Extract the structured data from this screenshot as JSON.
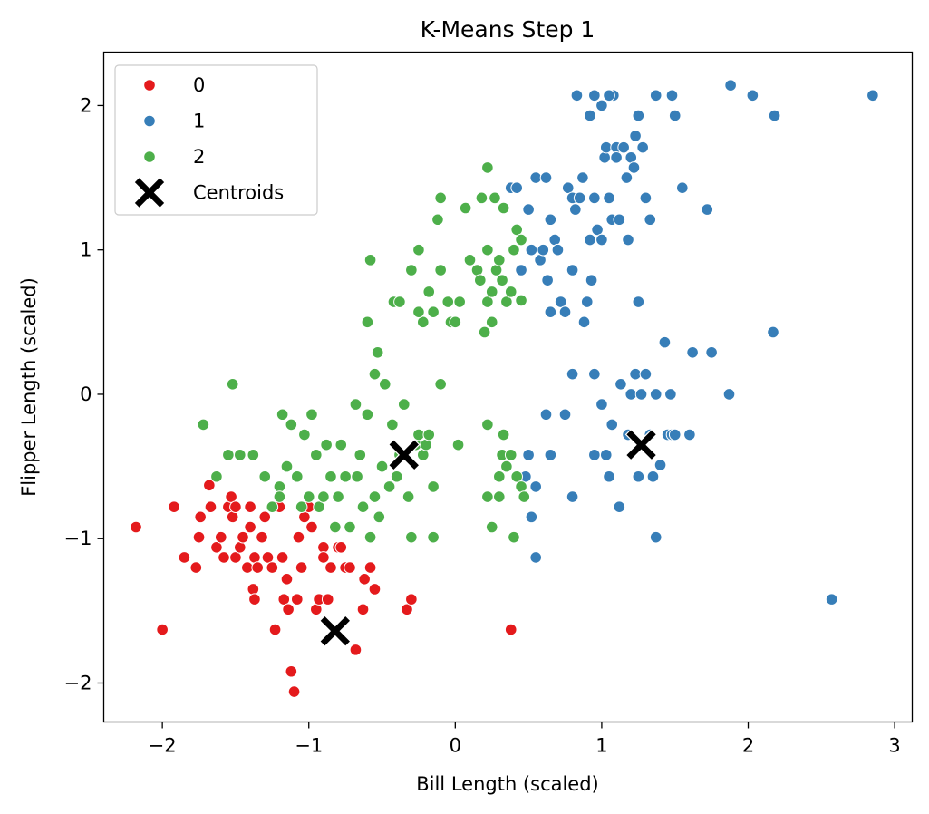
{
  "chart_data": {
    "type": "scatter",
    "title": "K-Means Step 1",
    "xlabel": "Bill Length (scaled)",
    "ylabel": "Flipper Length (scaled)",
    "xlim": [
      -2.4,
      3.12
    ],
    "ylim": [
      -2.27,
      2.37
    ],
    "xticks": [
      -2,
      -1,
      0,
      1,
      2,
      3
    ],
    "xtick_labels": [
      "−2",
      "−1",
      "0",
      "1",
      "2",
      "3"
    ],
    "yticks": [
      -2,
      -1,
      0,
      1,
      2
    ],
    "ytick_labels": [
      "−2",
      "−1",
      "0",
      "1",
      "2"
    ],
    "grid": false,
    "legend_position": "top-left",
    "series": [
      {
        "name": "0",
        "color": "#e41a1c",
        "points": [
          [
            -2.18,
            -0.92
          ],
          [
            -2.0,
            -1.63
          ],
          [
            -1.92,
            -0.78
          ],
          [
            -1.85,
            -1.13
          ],
          [
            -1.77,
            -1.2
          ],
          [
            -1.75,
            -0.99
          ],
          [
            -1.74,
            -0.85
          ],
          [
            -1.68,
            -0.63
          ],
          [
            -1.67,
            -0.78
          ],
          [
            -1.63,
            -1.06
          ],
          [
            -1.6,
            -0.99
          ],
          [
            -1.58,
            -1.13
          ],
          [
            -1.55,
            -0.78
          ],
          [
            -1.53,
            -0.71
          ],
          [
            -1.52,
            -0.85
          ],
          [
            -1.5,
            -1.13
          ],
          [
            -1.5,
            -0.78
          ],
          [
            -1.47,
            -1.06
          ],
          [
            -1.45,
            -0.99
          ],
          [
            -1.42,
            -1.2
          ],
          [
            -1.4,
            -0.92
          ],
          [
            -1.4,
            -0.78
          ],
          [
            -1.38,
            -1.35
          ],
          [
            -1.37,
            -1.42
          ],
          [
            -1.37,
            -1.13
          ],
          [
            -1.35,
            -1.2
          ],
          [
            -1.32,
            -0.99
          ],
          [
            -1.3,
            -0.85
          ],
          [
            -1.28,
            -1.13
          ],
          [
            -1.25,
            -1.2
          ],
          [
            -1.23,
            -1.63
          ],
          [
            -1.2,
            -0.78
          ],
          [
            -1.18,
            -1.13
          ],
          [
            -1.17,
            -1.42
          ],
          [
            -1.15,
            -1.28
          ],
          [
            -1.14,
            -1.49
          ],
          [
            -1.12,
            -1.92
          ],
          [
            -1.1,
            -2.06
          ],
          [
            -1.08,
            -1.42
          ],
          [
            -1.07,
            -0.99
          ],
          [
            -1.05,
            -1.2
          ],
          [
            -1.03,
            -0.85
          ],
          [
            -1.0,
            -0.78
          ],
          [
            -0.98,
            -0.92
          ],
          [
            -0.95,
            -1.49
          ],
          [
            -0.93,
            -1.42
          ],
          [
            -0.9,
            -1.06
          ],
          [
            -0.9,
            -1.13
          ],
          [
            -0.87,
            -1.42
          ],
          [
            -0.85,
            -1.2
          ],
          [
            -0.8,
            -1.06
          ],
          [
            -0.78,
            -1.06
          ],
          [
            -0.75,
            -1.2
          ],
          [
            -0.72,
            -1.2
          ],
          [
            -0.68,
            -1.77
          ],
          [
            -0.63,
            -1.49
          ],
          [
            -0.62,
            -1.28
          ],
          [
            -0.58,
            -1.2
          ],
          [
            -0.55,
            -1.35
          ],
          [
            -0.33,
            -1.49
          ],
          [
            -0.3,
            -1.42
          ],
          [
            0.38,
            -1.63
          ]
        ]
      },
      {
        "name": "1",
        "color": "#377eb8",
        "points": [
          [
            0.38,
            1.43
          ],
          [
            0.42,
            1.43
          ],
          [
            0.45,
            0.86
          ],
          [
            0.45,
            0.65
          ],
          [
            0.5,
            1.28
          ],
          [
            0.52,
            1.0
          ],
          [
            0.55,
            1.5
          ],
          [
            0.58,
            0.93
          ],
          [
            0.6,
            1.0
          ],
          [
            0.62,
            1.5
          ],
          [
            0.63,
            0.79
          ],
          [
            0.65,
            1.21
          ],
          [
            0.65,
            0.57
          ],
          [
            0.68,
            1.07
          ],
          [
            0.7,
            1.0
          ],
          [
            0.72,
            0.64
          ],
          [
            0.75,
            0.57
          ],
          [
            0.77,
            1.43
          ],
          [
            0.8,
            1.36
          ],
          [
            0.8,
            0.86
          ],
          [
            0.82,
            1.28
          ],
          [
            0.83,
            2.07
          ],
          [
            0.85,
            1.36
          ],
          [
            0.87,
            1.5
          ],
          [
            0.88,
            0.5
          ],
          [
            0.9,
            0.64
          ],
          [
            0.92,
            1.07
          ],
          [
            0.93,
            0.79
          ],
          [
            0.95,
            1.36
          ],
          [
            0.97,
            1.14
          ],
          [
            1.0,
            1.07
          ],
          [
            1.02,
            1.64
          ],
          [
            1.03,
            1.71
          ],
          [
            1.05,
            1.36
          ],
          [
            1.07,
            1.21
          ],
          [
            1.08,
            2.07
          ],
          [
            1.1,
            1.71
          ],
          [
            1.1,
            1.64
          ],
          [
            1.12,
            1.21
          ],
          [
            1.15,
            1.71
          ],
          [
            1.17,
            1.5
          ],
          [
            1.18,
            1.07
          ],
          [
            1.2,
            1.64
          ],
          [
            1.22,
            1.57
          ],
          [
            1.23,
            1.79
          ],
          [
            1.25,
            1.93
          ],
          [
            1.25,
            0.64
          ],
          [
            1.28,
            1.71
          ],
          [
            1.3,
            1.36
          ],
          [
            1.33,
            1.21
          ],
          [
            1.37,
            2.07
          ],
          [
            1.48,
            2.07
          ],
          [
            1.5,
            1.93
          ],
          [
            1.55,
            1.43
          ],
          [
            1.72,
            1.28
          ],
          [
            1.88,
            2.14
          ],
          [
            2.03,
            2.07
          ],
          [
            2.18,
            1.93
          ],
          [
            2.85,
            2.07
          ],
          [
            0.92,
            1.93
          ],
          [
            1.0,
            2.0
          ],
          [
            1.05,
            2.07
          ],
          [
            0.95,
            2.07
          ],
          [
            0.62,
            -0.14
          ],
          [
            0.75,
            -0.14
          ],
          [
            0.8,
            0.14
          ],
          [
            0.8,
            -0.71
          ],
          [
            0.95,
            0.14
          ],
          [
            0.95,
            -0.42
          ],
          [
            1.0,
            -0.07
          ],
          [
            1.03,
            -0.42
          ],
          [
            1.05,
            -0.57
          ],
          [
            1.07,
            -0.21
          ],
          [
            1.12,
            -0.78
          ],
          [
            1.13,
            0.07
          ],
          [
            1.18,
            -0.28
          ],
          [
            1.2,
            0.0
          ],
          [
            1.23,
            0.14
          ],
          [
            1.25,
            -0.57
          ],
          [
            1.27,
            0.0
          ],
          [
            1.3,
            0.14
          ],
          [
            1.33,
            -0.28
          ],
          [
            1.35,
            -0.57
          ],
          [
            1.37,
            0.0
          ],
          [
            1.4,
            -0.49
          ],
          [
            1.43,
            0.36
          ],
          [
            1.45,
            -0.28
          ],
          [
            1.47,
            0.0
          ],
          [
            1.48,
            -0.28
          ],
          [
            1.5,
            -0.28
          ],
          [
            1.6,
            -0.28
          ],
          [
            1.62,
            0.29
          ],
          [
            1.75,
            0.29
          ],
          [
            1.87,
            0.0
          ],
          [
            2.17,
            0.43
          ],
          [
            1.37,
            -0.99
          ],
          [
            0.48,
            -0.57
          ],
          [
            0.5,
            -0.42
          ],
          [
            0.52,
            -0.85
          ],
          [
            0.55,
            -0.64
          ],
          [
            0.55,
            -1.13
          ],
          [
            0.65,
            -0.42
          ],
          [
            2.57,
            -1.42
          ]
        ]
      },
      {
        "name": "2",
        "color": "#4daf4a",
        "points": [
          [
            -1.72,
            -0.21
          ],
          [
            -1.63,
            -0.57
          ],
          [
            -1.55,
            -0.42
          ],
          [
            -1.52,
            0.07
          ],
          [
            -1.47,
            -0.42
          ],
          [
            -1.38,
            -0.42
          ],
          [
            -1.3,
            -0.57
          ],
          [
            -1.25,
            -0.78
          ],
          [
            -1.2,
            -0.64
          ],
          [
            -1.2,
            -0.71
          ],
          [
            -1.18,
            -0.14
          ],
          [
            -1.15,
            -0.5
          ],
          [
            -1.12,
            -0.21
          ],
          [
            -1.08,
            -0.57
          ],
          [
            -1.05,
            -0.78
          ],
          [
            -1.03,
            -0.28
          ],
          [
            -1.0,
            -0.71
          ],
          [
            -0.98,
            -0.14
          ],
          [
            -0.95,
            -0.42
          ],
          [
            -0.93,
            -0.78
          ],
          [
            -0.9,
            -0.71
          ],
          [
            -0.88,
            -0.35
          ],
          [
            -0.85,
            -0.57
          ],
          [
            -0.82,
            -0.92
          ],
          [
            -0.8,
            -0.71
          ],
          [
            -0.78,
            -0.35
          ],
          [
            -0.75,
            -0.57
          ],
          [
            -0.72,
            -0.92
          ],
          [
            -0.68,
            -0.07
          ],
          [
            -0.67,
            -0.57
          ],
          [
            -0.65,
            -0.42
          ],
          [
            -0.63,
            -0.78
          ],
          [
            -0.6,
            -0.14
          ],
          [
            -0.58,
            -0.99
          ],
          [
            -0.55,
            -0.71
          ],
          [
            -0.52,
            -0.85
          ],
          [
            -0.5,
            -0.5
          ],
          [
            -0.48,
            0.07
          ],
          [
            -0.45,
            -0.64
          ],
          [
            -0.43,
            -0.21
          ],
          [
            -0.4,
            -0.57
          ],
          [
            -0.38,
            -0.42
          ],
          [
            -0.35,
            -0.07
          ],
          [
            -0.32,
            -0.71
          ],
          [
            -0.3,
            -0.99
          ],
          [
            -0.27,
            -0.35
          ],
          [
            -0.25,
            -0.28
          ],
          [
            -0.22,
            -0.42
          ],
          [
            -0.2,
            -0.35
          ],
          [
            -0.18,
            -0.28
          ],
          [
            -0.15,
            -0.64
          ],
          [
            -0.15,
            -0.99
          ],
          [
            -0.1,
            0.07
          ],
          [
            0.02,
            -0.35
          ],
          [
            0.22,
            -0.21
          ],
          [
            0.22,
            -0.71
          ],
          [
            0.25,
            -0.92
          ],
          [
            0.3,
            -0.71
          ],
          [
            0.3,
            -0.57
          ],
          [
            0.32,
            -0.42
          ],
          [
            0.33,
            -0.28
          ],
          [
            0.35,
            -0.5
          ],
          [
            0.38,
            -0.42
          ],
          [
            0.4,
            -0.99
          ],
          [
            0.42,
            -0.57
          ],
          [
            0.45,
            -0.64
          ],
          [
            0.47,
            -0.71
          ],
          [
            -0.58,
            0.93
          ],
          [
            -0.6,
            0.5
          ],
          [
            -0.55,
            0.14
          ],
          [
            -0.53,
            0.29
          ],
          [
            -0.42,
            0.64
          ],
          [
            -0.38,
            0.64
          ],
          [
            -0.3,
            0.86
          ],
          [
            -0.25,
            1.0
          ],
          [
            -0.22,
            0.5
          ],
          [
            -0.18,
            0.71
          ],
          [
            -0.15,
            0.57
          ],
          [
            -0.12,
            1.21
          ],
          [
            -0.1,
            0.86
          ],
          [
            -0.1,
            1.36
          ],
          [
            -0.05,
            0.64
          ],
          [
            -0.03,
            0.5
          ],
          [
            0.0,
            0.5
          ],
          [
            0.03,
            0.64
          ],
          [
            0.07,
            1.29
          ],
          [
            0.1,
            0.93
          ],
          [
            0.15,
            0.86
          ],
          [
            0.17,
            0.79
          ],
          [
            0.18,
            1.36
          ],
          [
            0.2,
            0.43
          ],
          [
            0.22,
            1.57
          ],
          [
            0.22,
            1.0
          ],
          [
            0.22,
            0.64
          ],
          [
            0.25,
            0.71
          ],
          [
            0.27,
            1.36
          ],
          [
            0.28,
            0.86
          ],
          [
            0.3,
            0.93
          ],
          [
            0.32,
            0.79
          ],
          [
            0.33,
            1.29
          ],
          [
            0.35,
            0.64
          ],
          [
            0.38,
            0.71
          ],
          [
            0.4,
            1.0
          ],
          [
            0.42,
            1.14
          ],
          [
            0.45,
            1.07
          ],
          [
            0.25,
            0.5
          ],
          [
            -0.25,
            0.57
          ],
          [
            0.45,
            0.65
          ]
        ]
      },
      {
        "name": "Centroids",
        "color": "#000000",
        "marker": "x",
        "points": [
          [
            -0.82,
            -1.64
          ],
          [
            -0.35,
            -0.42
          ],
          [
            1.27,
            -0.35
          ]
        ]
      }
    ]
  }
}
